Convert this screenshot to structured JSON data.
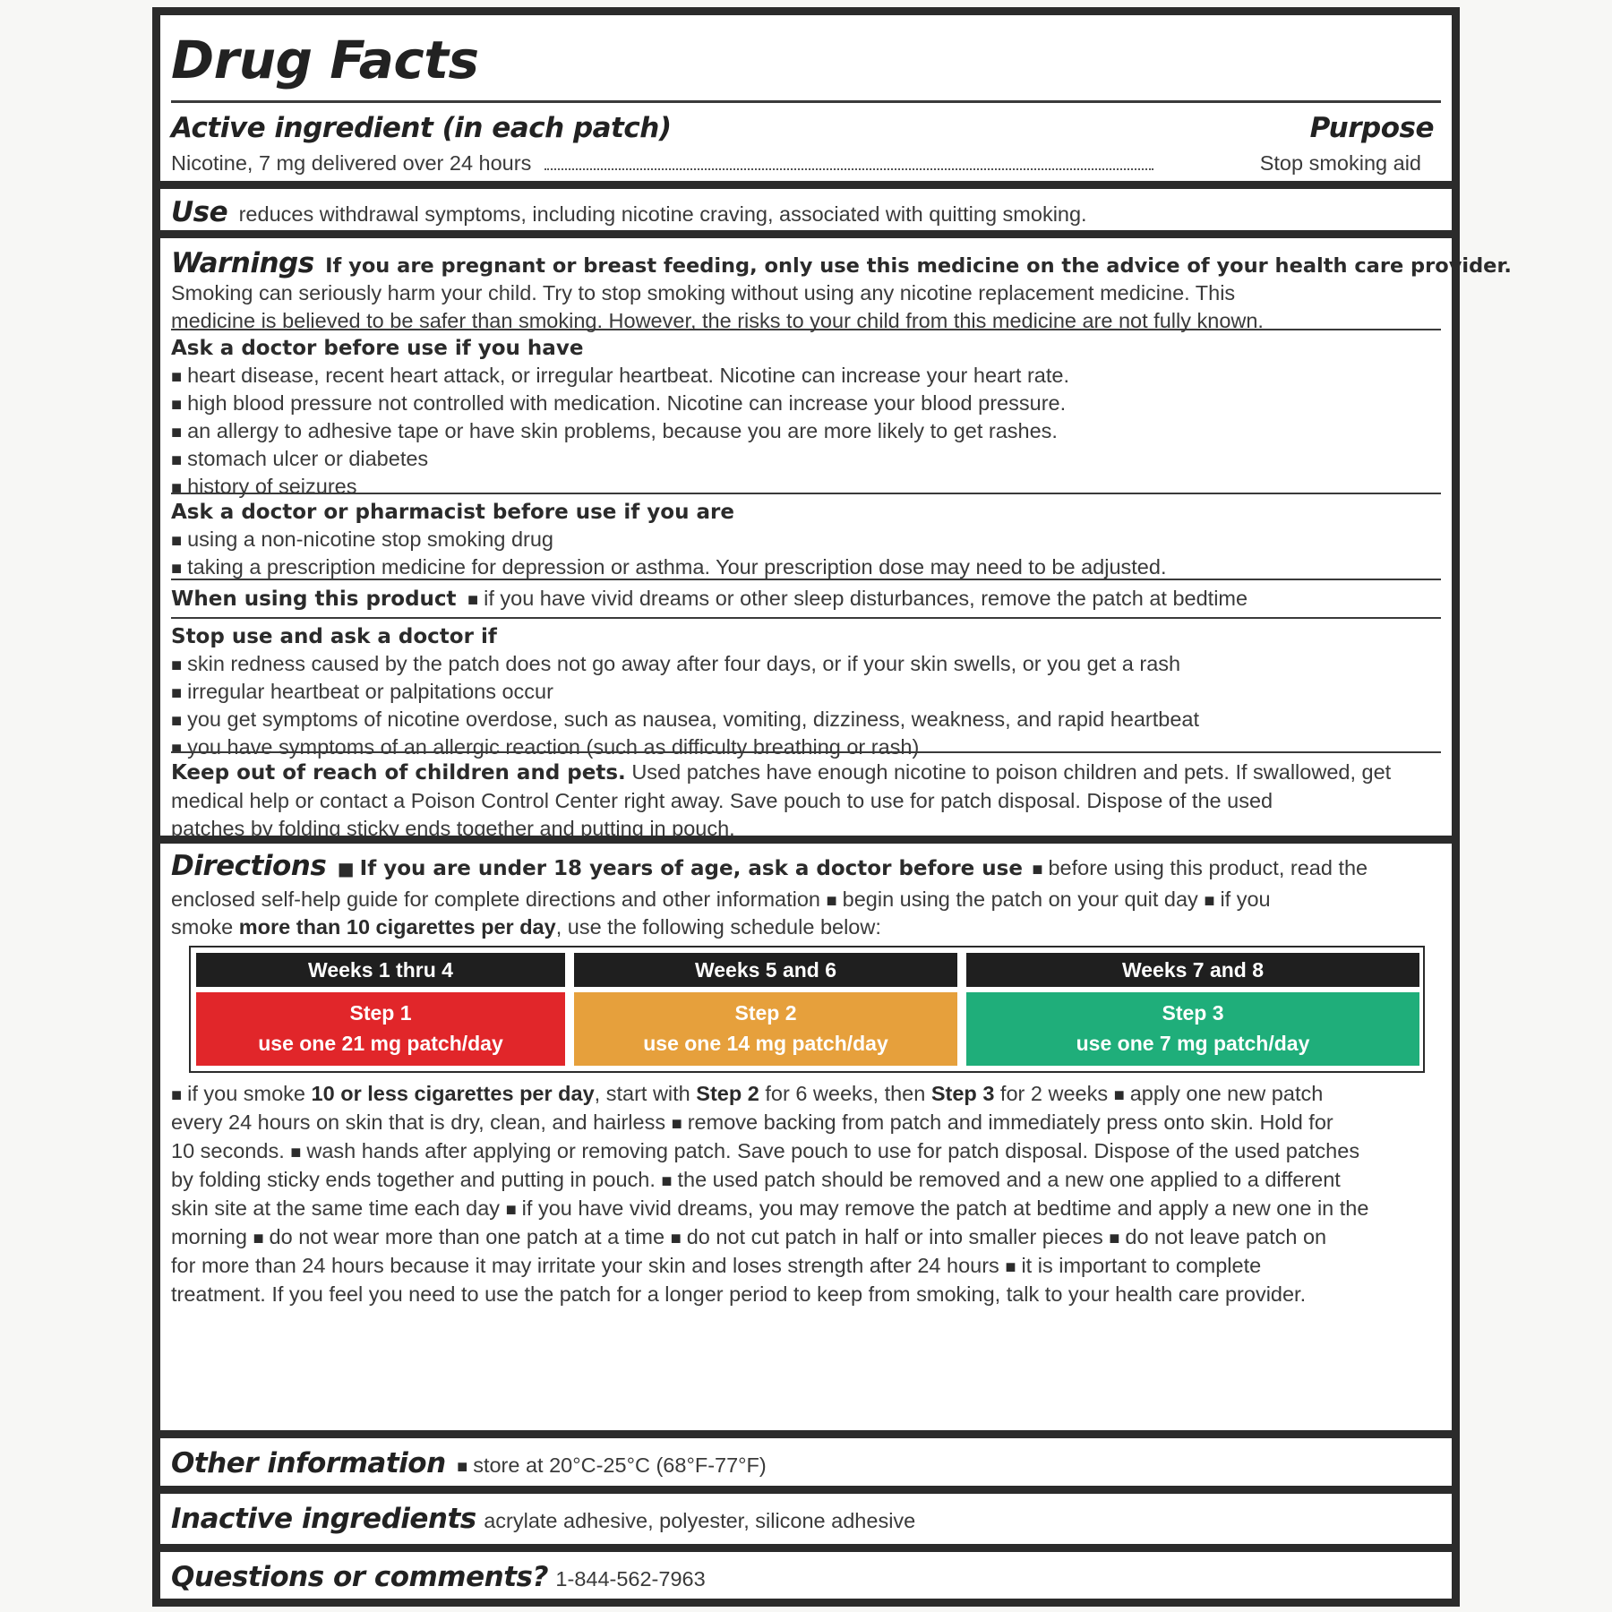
{
  "title": "Drug Facts",
  "active": {
    "heading": "Active ingredient (in each patch)",
    "purpose_heading": "Purpose",
    "ingredient": "Nicotine, 7 mg delivered over 24 hours",
    "purpose": "Stop smoking aid"
  },
  "use": {
    "heading": "Use",
    "text": "reduces withdrawal symptoms, including nicotine craving, associated with quitting smoking."
  },
  "warnings": {
    "heading": "Warnings",
    "bold_text": "If you are pregnant or breast feeding, only use this medicine on the advice of your health care provider.",
    "line2": "Smoking can seriously harm your child. Try to stop smoking without using any nicotine replacement medicine. This",
    "line3": "medicine is believed to be safer than smoking. However, the risks to your child from this medicine are not fully known.",
    "ask_doctor": {
      "heading": "Ask a doctor before use if you have",
      "items": [
        "heart disease, recent heart attack, or irregular heartbeat. Nicotine can increase your heart rate.",
        "high blood pressure not controlled with medication. Nicotine can increase your blood pressure.",
        "an allergy to adhesive tape or have skin problems, because you are more likely to get rashes.",
        "stomach ulcer or diabetes",
        "history of seizures"
      ]
    },
    "ask_pharmacist": {
      "heading": "Ask a doctor or pharmacist before use if you are",
      "items": [
        "using a non-nicotine stop smoking drug",
        "taking a prescription medicine for depression or asthma. Your prescription dose may need to be adjusted."
      ]
    },
    "when_using": {
      "heading": "When using this product",
      "text": "if you have vivid dreams or other sleep disturbances, remove the patch at bedtime"
    },
    "stop_use": {
      "heading": "Stop use and ask a doctor if",
      "items": [
        "skin redness caused by the patch does not go away after four days, or if your skin swells, or you get a rash",
        "irregular  heartbeat or palpitations occur",
        "you get symptoms of nicotine overdose, such as nausea, vomiting, dizziness, weakness, and rapid heartbeat",
        "you have symptoms of an allergic reaction (such as difficulty breathing or rash)"
      ]
    },
    "keep_out": {
      "bold": "Keep out of reach of children and pets.",
      "line1": "Used patches have enough nicotine to poison children and pets. If swallowed, get",
      "line2": "medical help or contact a Poison Control Center right away. Save pouch to use for patch disposal. Dispose of the used",
      "line3": "patches by folding sticky ends together and putting in pouch."
    }
  },
  "directions": {
    "heading": "Directions",
    "l1_bold": "If you are under 18 years of age, ask a doctor before use",
    "l1_rest": "before using this product, read the",
    "l2a": "enclosed self-help guide for complete directions and other information",
    "l2b": "begin using the patch on your quit day",
    "l2c": "if you",
    "l3_pre": "smoke",
    "l3_bold": "more than 10 cigarettes per day",
    "l3_rest": ", use the following schedule below:",
    "schedule": [
      {
        "weeks": "Weeks 1 thru 4",
        "step": "Step 1",
        "dose": "use one 21 mg patch/day",
        "color": "#e1262a"
      },
      {
        "weeks": "Weeks 5 and 6",
        "step": "Step 2",
        "dose": "use one 14 mg patch/day",
        "color": "#e6a03c"
      },
      {
        "weeks": "Weeks 7 and 8",
        "step": "Step 3",
        "dose": "use one 7 mg patch/day",
        "color": "#1fae7a"
      }
    ],
    "p1_pre": "if you smoke",
    "p1_b1": "10 or less cigarettes per day",
    "p1_m1": ", start with",
    "p1_b2": "Step 2",
    "p1_m2": "for 6 weeks, then",
    "p1_b3": "Step 3",
    "p1_m3": "for 2 weeks",
    "p1_end": "apply one new patch",
    "p2a": "every 24 hours on skin that is dry, clean, and hairless",
    "p2b": "remove backing from patch and immediately press onto skin. Hold for",
    "p3a": "10 seconds.",
    "p3b": "wash hands after applying or removing patch. Save pouch to use for patch disposal. Dispose of the used patches",
    "p4a": "by folding sticky ends together and putting in pouch.",
    "p4b": "the used patch should be removed and a new one applied to a different",
    "p5a": "skin site at the same time each day",
    "p5b": "if you have vivid dreams, you may remove the patch at bedtime and apply a new one in the",
    "p6a": "morning",
    "p6b": "do not wear more than one patch at a time",
    "p6c": "do not cut patch in half or into smaller pieces",
    "p6d": "do not leave patch on",
    "p7a": "for more than 24 hours because it may irritate your skin and loses strength after 24 hours",
    "p7b": "it is important to complete",
    "p8": "treatment. If you feel you need to use the patch for a longer period to keep from smoking, talk to your health care provider."
  },
  "other": {
    "heading": "Other information",
    "text": "store at 20°C-25°C (68°F-77°F)"
  },
  "inactive": {
    "heading": "Inactive ingredients",
    "text": "acrylate adhesive, polyester, silicone adhesive"
  },
  "questions": {
    "heading": "Questions or comments?",
    "phone": "1-844-562-7963"
  }
}
